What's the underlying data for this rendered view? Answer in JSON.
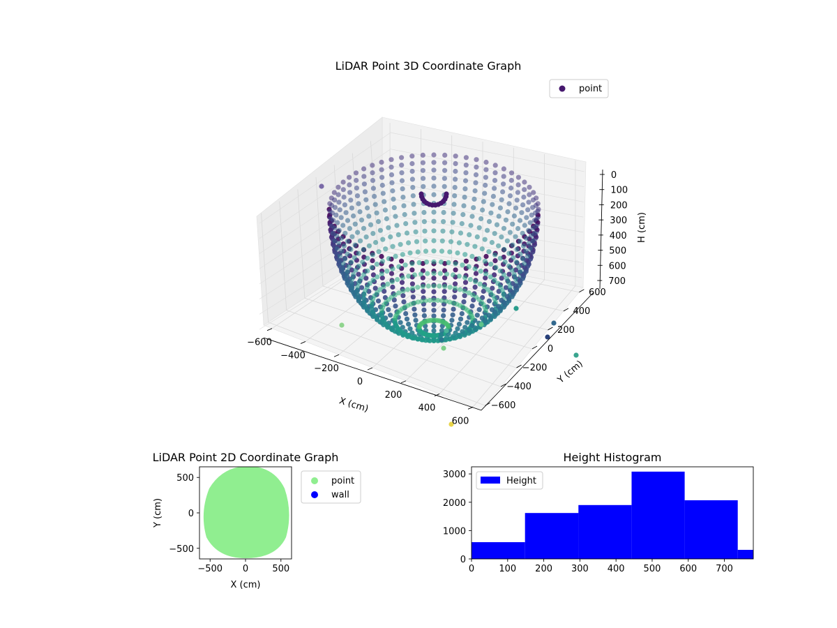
{
  "chart_data": [
    {
      "type": "scatter3d",
      "title": "LiDAR Point 3D Coordinate Graph",
      "xlabel": "X (cm)",
      "ylabel": "Y (cm)",
      "zlabel": "H (cm)",
      "xticks": [
        "−600",
        "−400",
        "−200",
        "0",
        "200",
        "400",
        "600"
      ],
      "yticks": [
        "−600",
        "−400",
        "−200",
        "0",
        "200",
        "400",
        "600"
      ],
      "zticks": [
        "0",
        "100",
        "200",
        "300",
        "400",
        "500",
        "600",
        "700"
      ],
      "xlim": [
        -650,
        650
      ],
      "ylim": [
        -650,
        650
      ],
      "zlim": [
        0,
        780
      ],
      "z_inverted": true,
      "legend": {
        "position": "top-right",
        "entries": [
          {
            "label": "point",
            "color": "#46186e"
          }
        ]
      },
      "colormap": "viridis",
      "shape": "hemispherical bowl of points, radius ~600 cm, depth ~780 cm"
    },
    {
      "type": "scatter",
      "title": "LiDAR Point 2D Coordinate Graph",
      "xlabel": "X (cm)",
      "ylabel": "Y (cm)",
      "xticks": [
        "−500",
        "0",
        "500"
      ],
      "yticks": [
        "500",
        "0",
        "−500"
      ],
      "xlim": [
        -650,
        650
      ],
      "ylim": [
        -650,
        650
      ],
      "legend": {
        "position": "outside-right",
        "entries": [
          {
            "label": "point",
            "color": "#90ee90"
          },
          {
            "label": "wall",
            "color": "#0000ff"
          }
        ]
      },
      "point_cloud": "filled disc of points, radius ~620 cm"
    },
    {
      "type": "histogram",
      "title": "Height Histogram",
      "legend": {
        "position": "top-left",
        "entries": [
          {
            "label": "Height",
            "color": "#0000ff"
          }
        ]
      },
      "xticks": [
        "0",
        "100",
        "200",
        "300",
        "400",
        "500",
        "600",
        "700"
      ],
      "yticks": [
        "0",
        "1000",
        "2000",
        "3000"
      ],
      "xlim": [
        0,
        780
      ],
      "ylim": [
        0,
        3250
      ],
      "bins": [
        {
          "start": 0,
          "end": 148,
          "count": 590
        },
        {
          "start": 148,
          "end": 296,
          "count": 1620
        },
        {
          "start": 296,
          "end": 443,
          "count": 1900
        },
        {
          "start": 443,
          "end": 590,
          "count": 3080
        },
        {
          "start": 590,
          "end": 737,
          "count": 2070
        },
        {
          "start": 737,
          "end": 780,
          "count": 320
        }
      ],
      "color": "#0000ff"
    }
  ]
}
